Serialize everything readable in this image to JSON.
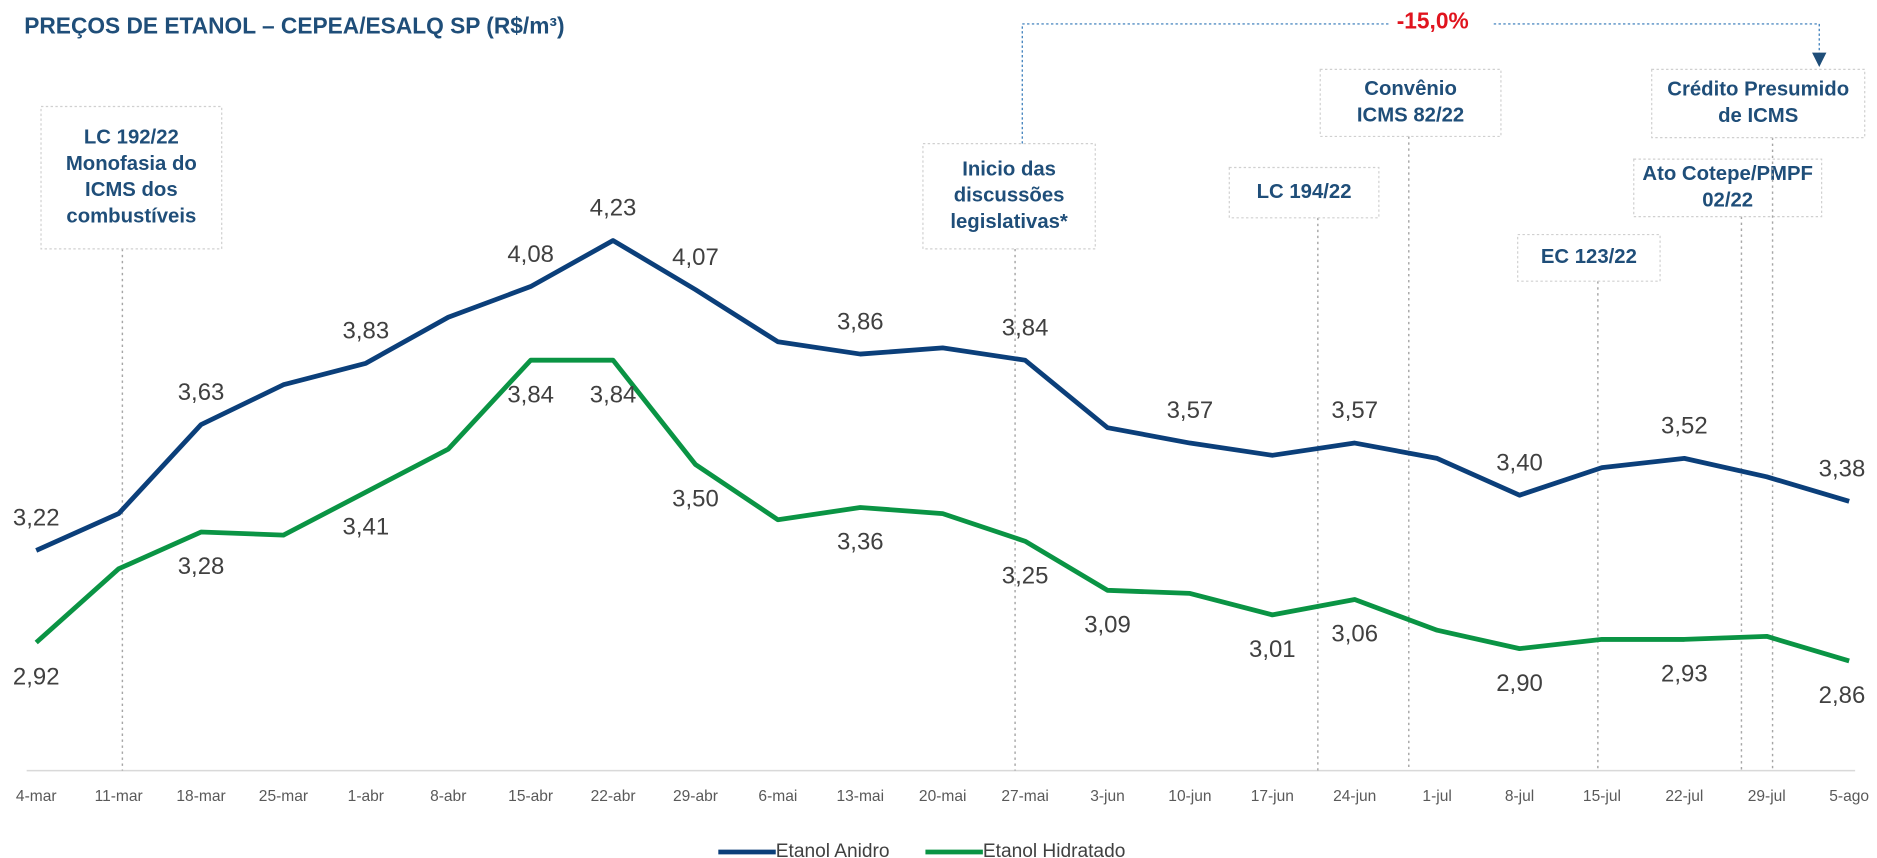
{
  "chart_data": {
    "type": "line",
    "title": "PREÇOS DE ETANOL – CEPEA/ESALQ SP (R$/m³)",
    "categories": [
      "4-mar",
      "11-mar",
      "18-mar",
      "25-mar",
      "1-abr",
      "8-abr",
      "15-abr",
      "22-abr",
      "29-abr",
      "6-mai",
      "13-mai",
      "20-mai",
      "27-mai",
      "3-jun",
      "10-jun",
      "17-jun",
      "24-jun",
      "1-jul",
      "8-jul",
      "15-jul",
      "22-jul",
      "29-jul",
      "5-ago"
    ],
    "series": [
      {
        "name": "Etanol Anidro",
        "color": "#0b3f7a",
        "values": [
          3.22,
          3.34,
          3.63,
          3.76,
          3.83,
          3.98,
          4.08,
          4.23,
          4.07,
          3.9,
          3.86,
          3.88,
          3.84,
          3.62,
          3.57,
          3.53,
          3.57,
          3.52,
          3.4,
          3.49,
          3.52,
          3.46,
          3.38
        ],
        "value_labels": [
          "3,22",
          null,
          "3,63",
          null,
          "3,83",
          null,
          "4,08",
          "4,23",
          "4,07",
          null,
          "3,86",
          null,
          "3,84",
          null,
          "3,57",
          null,
          "3,57",
          null,
          "3,40",
          null,
          "3,52",
          null,
          "3,38"
        ]
      },
      {
        "name": "Etanol Hidratado",
        "color": "#0a9444",
        "values": [
          2.92,
          3.16,
          3.28,
          3.27,
          3.41,
          3.55,
          3.84,
          3.84,
          3.5,
          3.32,
          3.36,
          3.34,
          3.25,
          3.09,
          3.08,
          3.01,
          3.06,
          2.96,
          2.9,
          2.93,
          2.93,
          2.94,
          2.86
        ],
        "value_labels": [
          "2,92",
          null,
          "3,28",
          null,
          "3,41",
          null,
          "3,84",
          "3,84",
          "3,50",
          null,
          "3,36",
          null,
          "3,25",
          "3,09",
          null,
          "3,01",
          "3,06",
          null,
          "2,90",
          null,
          "2,93",
          null,
          "2,86"
        ]
      }
    ],
    "ylim": [
      2.5,
      4.9
    ],
    "annotations": [
      {
        "lines": [
          "LC 192/22",
          "Monofasia do",
          "ICMS dos",
          "combustíveis"
        ]
      },
      {
        "lines": [
          "Inicio das",
          "discussões",
          "legislativas*"
        ]
      },
      {
        "lines": [
          "LC 194/22"
        ]
      },
      {
        "lines": [
          "Convênio",
          "ICMS 82/22"
        ]
      },
      {
        "lines": [
          "EC 123/22"
        ]
      },
      {
        "lines": [
          "Ato Cotepe/PMPF",
          "02/22"
        ]
      },
      {
        "lines": [
          "Crédito Presumido",
          "de ICMS"
        ]
      }
    ],
    "change_label": "-15,0%"
  }
}
